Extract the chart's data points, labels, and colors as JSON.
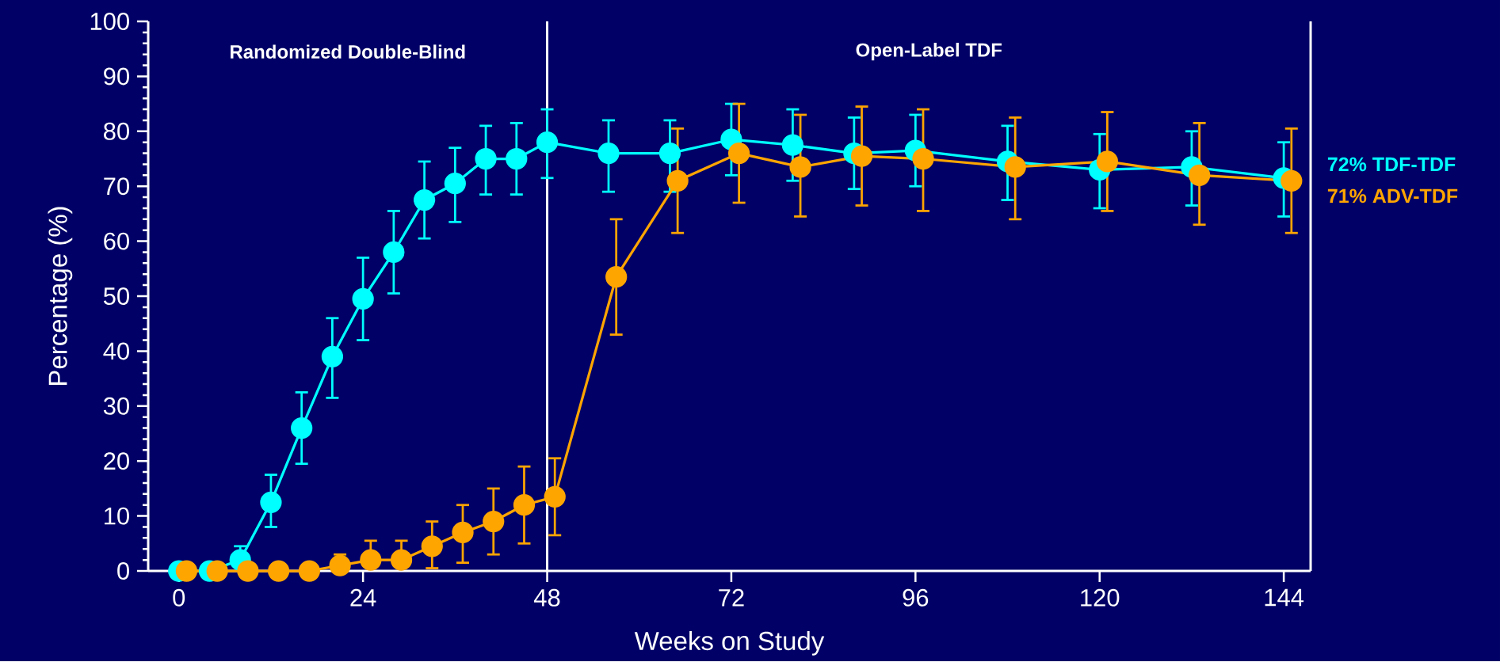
{
  "chart_data": {
    "type": "line",
    "xlabel": "Weeks on Study",
    "ylabel": "Percentage (%)",
    "x": [
      0,
      4,
      8,
      12,
      16,
      20,
      24,
      28,
      32,
      36,
      40,
      44,
      48,
      56,
      64,
      72,
      80,
      88,
      96,
      108,
      120,
      132,
      144
    ],
    "series": [
      {
        "name": "72% TDF-TDF",
        "color": "#00ffff",
        "values": [
          0,
          0,
          2,
          12.5,
          26,
          39,
          49.5,
          58,
          67.5,
          70.5,
          75,
          75,
          78,
          76,
          76,
          78.5,
          77.5,
          76,
          76.5,
          74.5,
          73,
          73.5,
          71.5
        ],
        "errors": [
          null,
          null,
          [
            2,
            4.5
          ],
          [
            8,
            17.5
          ],
          [
            19.5,
            32.5
          ],
          [
            31.5,
            46
          ],
          [
            42,
            57
          ],
          [
            50.5,
            65.5
          ],
          [
            60.5,
            74.5
          ],
          [
            63.5,
            77
          ],
          [
            68.5,
            81
          ],
          [
            68.5,
            81.5
          ],
          [
            71.5,
            84
          ],
          [
            69,
            82
          ],
          [
            69,
            82
          ],
          [
            72,
            85
          ],
          [
            71,
            84
          ],
          [
            69.5,
            82.5
          ],
          [
            70,
            83
          ],
          [
            67.5,
            81
          ],
          [
            66,
            79.5
          ],
          [
            66.5,
            80
          ],
          [
            64.5,
            78
          ]
        ]
      },
      {
        "name": "71% ADV-TDF",
        "color": "#ffa500",
        "x": [
          1,
          5,
          9,
          13,
          17,
          21,
          25,
          29,
          33,
          37,
          41,
          45,
          49,
          57,
          65,
          73,
          81,
          89,
          97,
          109,
          121,
          133,
          145
        ],
        "values": [
          0,
          0,
          0,
          0,
          0,
          1,
          2,
          2,
          4.5,
          7,
          9,
          12,
          13.5,
          53.5,
          71,
          76,
          73.5,
          75.5,
          75,
          73.5,
          74.5,
          72,
          71
        ],
        "errors": [
          null,
          null,
          null,
          null,
          null,
          [
            1,
            3
          ],
          [
            2,
            5.5
          ],
          [
            2,
            5.5
          ],
          [
            0.5,
            9
          ],
          [
            1.5,
            12
          ],
          [
            3,
            15
          ],
          [
            5,
            19
          ],
          [
            6.5,
            20.5
          ],
          [
            43,
            64
          ],
          [
            61.5,
            80.5
          ],
          [
            67,
            85
          ],
          [
            64.5,
            83
          ],
          [
            66.5,
            84.5
          ],
          [
            65.5,
            84
          ],
          [
            64,
            82.5
          ],
          [
            65.5,
            83.5
          ],
          [
            63,
            81.5
          ],
          [
            61.5,
            80.5
          ]
        ]
      }
    ],
    "xlim": [
      -4,
      147.5
    ],
    "xticks": [
      0,
      24,
      48,
      72,
      96,
      120,
      144
    ],
    "ylim": [
      0,
      100
    ],
    "yticks": [
      0,
      10,
      20,
      30,
      40,
      50,
      60,
      70,
      80,
      90,
      100
    ],
    "ref_lines": [
      {
        "axis": "x",
        "value": 48,
        "color": "#ffffff"
      }
    ],
    "annotations": [
      "Randomized Double-Blind",
      "Open-Label TDF"
    ],
    "marker": "circle",
    "line_style": "solid",
    "grid": false
  }
}
